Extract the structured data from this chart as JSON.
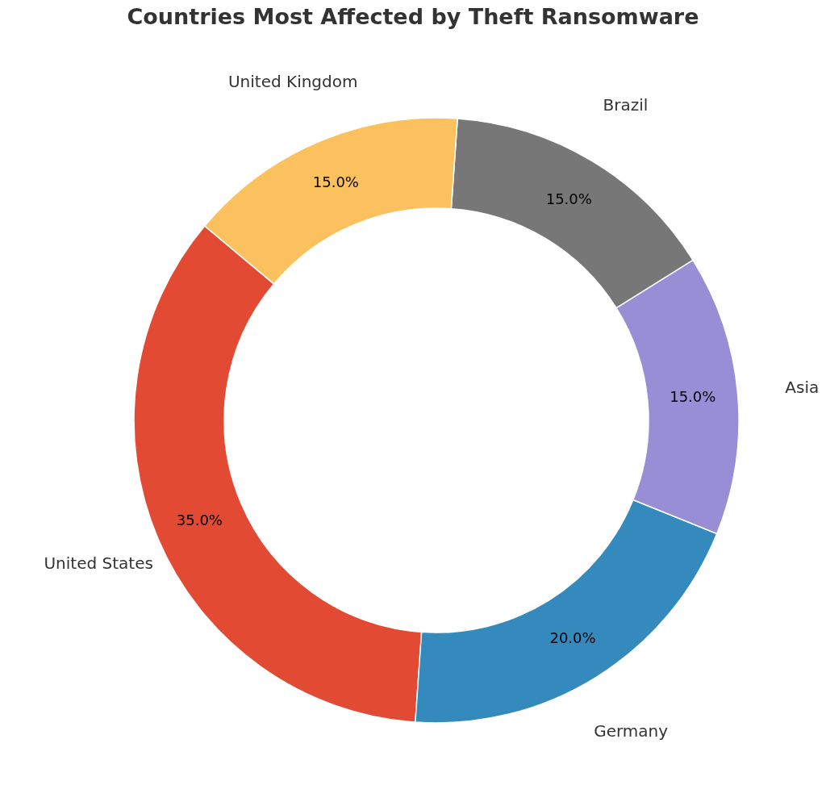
{
  "chart_data": {
    "type": "donut",
    "title": "Countries Most Affected by Theft Ransomware",
    "categories": [
      "United States",
      "Germany",
      "Asia",
      "Brazil",
      "United Kingdom"
    ],
    "values": [
      35,
      20,
      15,
      15,
      15
    ],
    "colors": [
      "#e24a33",
      "#348abd",
      "#988ed5",
      "#777777",
      "#fbc15e"
    ],
    "value_labels": [
      "35.0%",
      "20.0%",
      "15.0%",
      "15.0%",
      "15.0%"
    ],
    "legend": false
  }
}
